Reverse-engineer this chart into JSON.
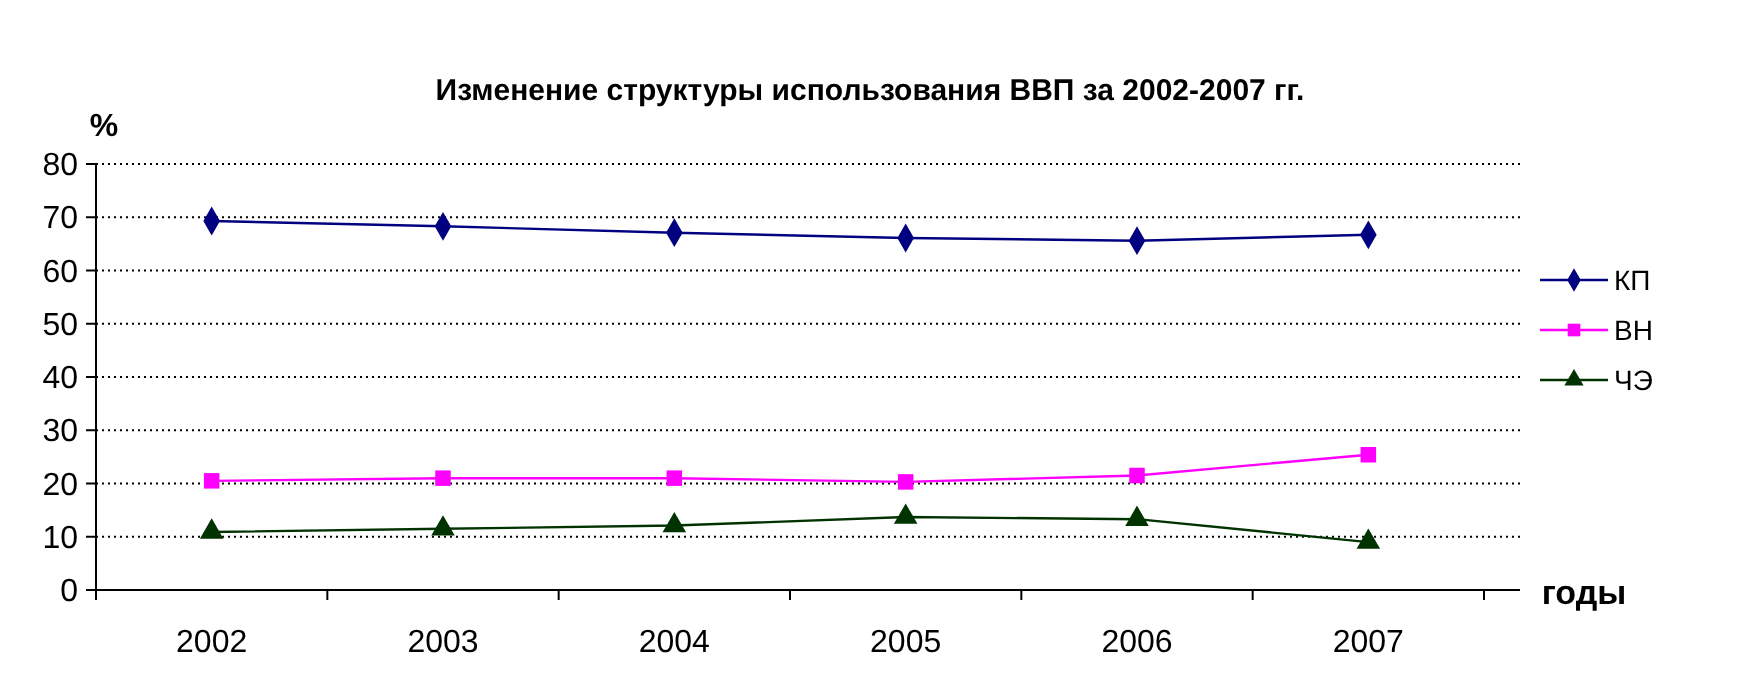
{
  "chart_data": {
    "type": "line",
    "title": "Изменение структуры использования ВВП за 2002-2007 гг.",
    "ylabel": "%",
    "xlabel": "годы",
    "categories": [
      "2002",
      "2003",
      "2004",
      "2005",
      "2006",
      "2007"
    ],
    "series": [
      {
        "name": "КП",
        "color": "#000080",
        "marker": "diamond",
        "values": [
          69.3,
          68.3,
          67.1,
          66.1,
          65.6,
          66.7
        ]
      },
      {
        "name": "ВН",
        "color": "#ff00ff",
        "marker": "square",
        "values": [
          20.5,
          21,
          21,
          20.3,
          21.5,
          25.4
        ]
      },
      {
        "name": "ЧЭ",
        "color": "#003300",
        "marker": "triangle",
        "values": [
          10.9,
          11.5,
          12.1,
          13.7,
          13.3,
          9
        ]
      }
    ],
    "ylim": [
      0,
      80
    ],
    "yticks": [
      0,
      10,
      20,
      30,
      40,
      50,
      60,
      70,
      80
    ],
    "grid": "y",
    "legend": "right"
  }
}
